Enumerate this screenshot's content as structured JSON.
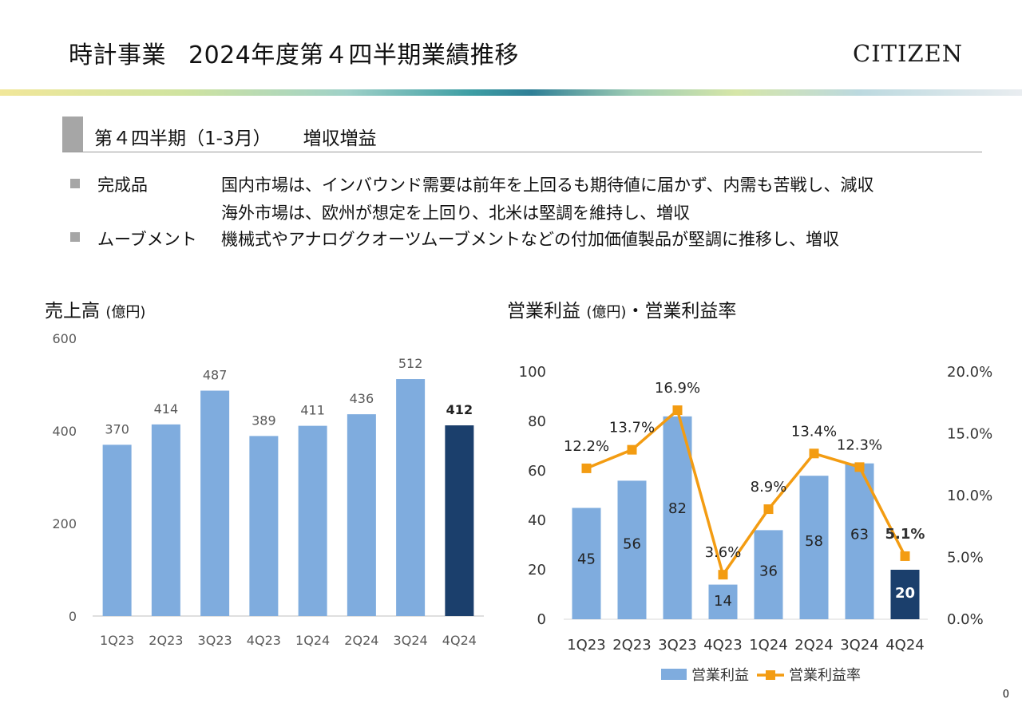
{
  "header": {
    "title_left": "時計事業",
    "title_right": "2024年度第４四半期業績推移",
    "brand": "CITIZEN"
  },
  "section": {
    "heading": "第４四半期（1-3月）",
    "summary": "増収増益"
  },
  "bullets": [
    {
      "label": "完成品",
      "lines": [
        "国内市場は、インバウンド需要は前年を上回るも期待値に届かず、内需も苦戦し、減収",
        "海外市場は、欧州が想定を上回り、北米は堅調を維持し、増収"
      ]
    },
    {
      "label": "ムーブメント",
      "lines": [
        "機械式やアナログクオーツムーブメントなどの付加価値製品が堅調に推移し、増収"
      ]
    }
  ],
  "left_chart_title": {
    "main": "売上高",
    "unit": "(億円)"
  },
  "right_chart_title": {
    "main": "営業利益",
    "unit": "(億円)",
    "rest": "・営業利益率"
  },
  "page_number": "0",
  "colors": {
    "bar": "#7facde",
    "bar_highlight": "#1b3f6c",
    "line": "#f39c12",
    "axis_text": "#595959"
  },
  "chart_data": [
    {
      "type": "bar",
      "categories": [
        "1Q23",
        "2Q23",
        "3Q23",
        "4Q23",
        "1Q24",
        "2Q24",
        "3Q24",
        "4Q24"
      ],
      "values": [
        370,
        414,
        487,
        389,
        411,
        436,
        512,
        412
      ],
      "ylim": [
        0,
        600
      ],
      "yticks": [
        "0",
        "200",
        "400",
        "600"
      ],
      "highlight_index": 7
    },
    {
      "type": "bar+line",
      "categories": [
        "1Q23",
        "2Q23",
        "3Q23",
        "4Q23",
        "1Q24",
        "2Q24",
        "3Q24",
        "4Q24"
      ],
      "series": [
        {
          "name": "営業利益",
          "type": "bar",
          "values": [
            45,
            56,
            82,
            14,
            36,
            58,
            63,
            20
          ],
          "labels": [
            "45",
            "56",
            "82",
            "14",
            "36",
            "58",
            "63",
            "20"
          ]
        },
        {
          "name": "営業利益率",
          "type": "line",
          "values": [
            12.2,
            13.7,
            16.9,
            3.6,
            8.9,
            13.4,
            12.3,
            5.1
          ],
          "labels": [
            "12.2%",
            "13.7%",
            "16.9%",
            "3.6%",
            "8.9%",
            "13.4%",
            "12.3%",
            "5.1%"
          ]
        }
      ],
      "ylim_left": [
        0,
        100
      ],
      "yticks_left": [
        "0",
        "20",
        "40",
        "60",
        "80",
        "100"
      ],
      "ylim_right": [
        0,
        20
      ],
      "yticks_right": [
        "0.0%",
        "5.0%",
        "10.0%",
        "15.0%",
        "20.0%"
      ],
      "highlight_index": 7,
      "legend": "bottom"
    }
  ]
}
